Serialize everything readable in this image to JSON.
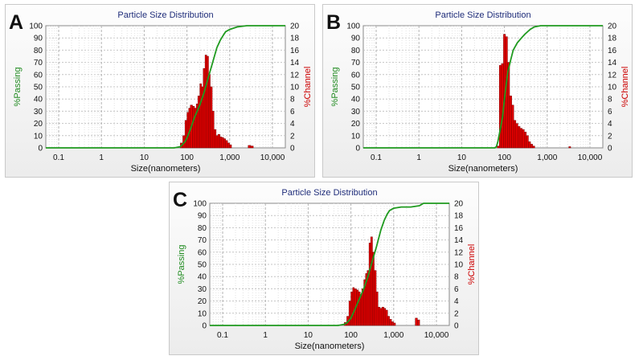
{
  "panels": [
    {
      "letter": "A"
    },
    {
      "letter": "B"
    },
    {
      "letter": "C"
    }
  ],
  "chart_data": [
    {
      "type": "bar",
      "title": "Particle Size Distribution",
      "xlabel": "Size(nanometers)",
      "ylabel": "%Passing",
      "y2label": "%Channel",
      "xscale": "log",
      "xlim": [
        0.05,
        20000
      ],
      "xticks": [
        0.1,
        1,
        10,
        100,
        1000,
        10000
      ],
      "xticklabels": [
        "0.1",
        "1",
        "10",
        "100",
        "1,000",
        "10,000"
      ],
      "ylim": [
        0,
        100
      ],
      "yticks": [
        0,
        10,
        20,
        30,
        40,
        50,
        60,
        70,
        80,
        90,
        100
      ],
      "y2lim": [
        0,
        20
      ],
      "y2ticks": [
        0,
        2,
        4,
        6,
        8,
        10,
        12,
        14,
        16,
        18,
        20
      ],
      "grid": true,
      "series": [
        {
          "name": "%Channel",
          "axis": "right",
          "x": [
            70,
            80,
            90,
            100,
            110,
            120,
            135,
            150,
            165,
            180,
            200,
            220,
            240,
            265,
            290,
            320,
            350,
            390,
            430,
            480,
            530,
            590,
            650,
            720,
            800,
            890,
            990,
            2700,
            3100
          ],
          "y": [
            0.8,
            2,
            4.5,
            5.8,
            6.5,
            7,
            6.8,
            6.5,
            7.2,
            8.5,
            10.5,
            10,
            13,
            15.2,
            15,
            12,
            10,
            6,
            3,
            2,
            2.2,
            1.8,
            1.7,
            1.5,
            1.2,
            0.8,
            0.5,
            0.4,
            0.3
          ]
        },
        {
          "name": "%Passing",
          "axis": "left",
          "x": [
            0.05,
            50,
            60,
            70,
            80,
            90,
            100,
            120,
            150,
            200,
            250,
            300,
            400,
            500,
            600,
            700,
            800,
            1000,
            1500,
            2500,
            5000,
            20000
          ],
          "y": [
            0,
            0,
            0.5,
            1,
            3,
            5,
            8,
            15,
            25,
            35,
            45,
            55,
            70,
            82,
            88,
            92,
            95,
            97,
            99,
            100,
            100,
            100
          ]
        }
      ]
    },
    {
      "type": "bar",
      "title": "Particle Size Distribution",
      "xlabel": "Size(nanometers)",
      "ylabel": "%Passing",
      "y2label": "%Channel",
      "xscale": "log",
      "xlim": [
        0.05,
        20000
      ],
      "xticks": [
        0.1,
        1,
        10,
        100,
        1000,
        10000
      ],
      "xticklabels": [
        "0.1",
        "1",
        "10",
        "100",
        "1,000",
        "10,000"
      ],
      "ylim": [
        0,
        100
      ],
      "yticks": [
        0,
        10,
        20,
        30,
        40,
        50,
        60,
        70,
        80,
        90,
        100
      ],
      "y2lim": [
        0,
        20
      ],
      "y2ticks": [
        0,
        2,
        4,
        6,
        8,
        10,
        12,
        14,
        16,
        18,
        20
      ],
      "grid": true,
      "series": [
        {
          "name": "%Channel",
          "axis": "right",
          "x": [
            68,
            76,
            85,
            95,
            106,
            118,
            132,
            148,
            165,
            185,
            207,
            232,
            260,
            291,
            325,
            364,
            408,
            457,
            3200
          ],
          "y": [
            0.3,
            13.5,
            13.8,
            18.6,
            18.2,
            14,
            8.5,
            7,
            4.5,
            4,
            3.5,
            3.2,
            3,
            2.6,
            2,
            1,
            0.6,
            0.3,
            0.2
          ]
        },
        {
          "name": "%Passing",
          "axis": "left",
          "x": [
            0.05,
            60,
            65,
            70,
            80,
            90,
            100,
            110,
            120,
            140,
            160,
            200,
            250,
            300,
            400,
            500,
            700,
            20000
          ],
          "y": [
            0,
            0,
            1,
            5,
            15,
            25,
            40,
            52,
            62,
            72,
            80,
            86,
            90,
            93,
            97,
            99,
            100,
            100
          ]
        }
      ]
    },
    {
      "type": "bar",
      "title": "Particle Size Distribution",
      "xlabel": "Size(nanometers)",
      "ylabel": "%Passing",
      "y2label": "%Channel",
      "xscale": "log",
      "xlim": [
        0.05,
        20000
      ],
      "xticks": [
        0.1,
        1,
        10,
        100,
        1000,
        10000
      ],
      "xticklabels": [
        "0.1",
        "1",
        "10",
        "100",
        "1,000",
        "10,000"
      ],
      "ylim": [
        0,
        100
      ],
      "yticks": [
        0,
        10,
        20,
        30,
        40,
        50,
        60,
        70,
        80,
        90,
        100
      ],
      "y2lim": [
        0,
        20
      ],
      "y2ticks": [
        0,
        2,
        4,
        6,
        8,
        10,
        12,
        14,
        16,
        18,
        20
      ],
      "grid": true,
      "series": [
        {
          "name": "%Channel",
          "axis": "right",
          "x": [
            70,
            80,
            90,
            100,
            110,
            120,
            135,
            150,
            165,
            180,
            200,
            220,
            240,
            265,
            290,
            320,
            350,
            390,
            430,
            480,
            530,
            590,
            650,
            720,
            800,
            890,
            990,
            3200,
            3600
          ],
          "y": [
            0.5,
            1.5,
            4,
            5.5,
            6.2,
            6,
            5.8,
            5.5,
            5,
            6,
            7.5,
            8.5,
            9,
            13.5,
            14.5,
            12,
            9,
            5.5,
            3,
            2.8,
            3,
            2.8,
            2.5,
            1.5,
            1,
            0.6,
            0.4,
            1.2,
            0.9
          ]
        },
        {
          "name": "%Passing",
          "axis": "left",
          "x": [
            0.05,
            50,
            60,
            70,
            80,
            90,
            100,
            120,
            150,
            200,
            250,
            300,
            400,
            500,
            600,
            700,
            800,
            1000,
            1500,
            2500,
            4000,
            5000,
            20000
          ],
          "y": [
            0,
            0,
            0.5,
            1,
            2,
            4,
            6,
            12,
            20,
            30,
            40,
            50,
            65,
            78,
            86,
            91,
            94,
            96,
            97,
            97,
            98,
            100,
            100
          ]
        }
      ]
    }
  ]
}
